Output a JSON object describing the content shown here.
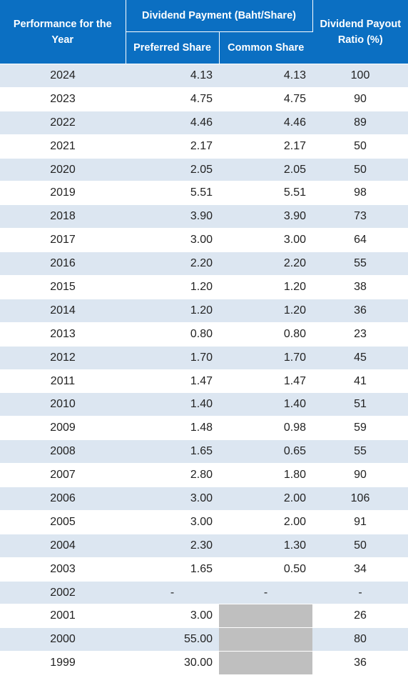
{
  "header": {
    "col_year": "Performance for the Year",
    "col_dividend": "Dividend Payment (Baht/Share)",
    "col_preferred": "Preferred Share",
    "col_common": "Common Share",
    "col_ratio": "Dividend Payout Ratio (%)"
  },
  "rows": [
    {
      "year": "2024",
      "preferred": "4.13",
      "common": "4.13",
      "ratio": "100"
    },
    {
      "year": "2023",
      "preferred": "4.75",
      "common": "4.75",
      "ratio": "90"
    },
    {
      "year": "2022",
      "preferred": "4.46",
      "common": "4.46",
      "ratio": "89"
    },
    {
      "year": "2021",
      "preferred": "2.17",
      "common": "2.17",
      "ratio": "50"
    },
    {
      "year": "2020",
      "preferred": "2.05",
      "common": "2.05",
      "ratio": "50"
    },
    {
      "year": "2019",
      "preferred": "5.51",
      "common": "5.51",
      "ratio": "98"
    },
    {
      "year": "2018",
      "preferred": "3.90",
      "common": "3.90",
      "ratio": "73"
    },
    {
      "year": "2017",
      "preferred": "3.00",
      "common": "3.00",
      "ratio": "64"
    },
    {
      "year": "2016",
      "preferred": "2.20",
      "common": "2.20",
      "ratio": "55"
    },
    {
      "year": "2015",
      "preferred": "1.20",
      "common": "1.20",
      "ratio": "38"
    },
    {
      "year": "2014",
      "preferred": "1.20",
      "common": "1.20",
      "ratio": "36"
    },
    {
      "year": "2013",
      "preferred": "0.80",
      "common": "0.80",
      "ratio": "23"
    },
    {
      "year": "2012",
      "preferred": "1.70",
      "common": "1.70",
      "ratio": "45"
    },
    {
      "year": "2011",
      "preferred": "1.47",
      "common": "1.47",
      "ratio": "41"
    },
    {
      "year": "2010",
      "preferred": "1.40",
      "common": "1.40",
      "ratio": "51"
    },
    {
      "year": "2009",
      "preferred": "1.48",
      "common": "0.98",
      "ratio": "59"
    },
    {
      "year": "2008",
      "preferred": "1.65",
      "common": "0.65",
      "ratio": "55"
    },
    {
      "year": "2007",
      "preferred": "2.80",
      "common": "1.80",
      "ratio": "90"
    },
    {
      "year": "2006",
      "preferred": "3.00",
      "common": "2.00",
      "ratio": "106"
    },
    {
      "year": "2005",
      "preferred": "3.00",
      "common": "2.00",
      "ratio": "91"
    },
    {
      "year": "2004",
      "preferred": "2.30",
      "common": "1.30",
      "ratio": "50"
    },
    {
      "year": "2003",
      "preferred": "1.65",
      "common": "0.50",
      "ratio": "34"
    },
    {
      "year": "2002",
      "preferred": "-",
      "common": "-",
      "ratio": "-"
    },
    {
      "year": "2001",
      "preferred": "3.00",
      "common": null,
      "ratio": "26"
    },
    {
      "year": "2000",
      "preferred": "55.00",
      "common": null,
      "ratio": "80"
    },
    {
      "year": "1999",
      "preferred": "30.00",
      "common": null,
      "ratio": "36"
    }
  ]
}
